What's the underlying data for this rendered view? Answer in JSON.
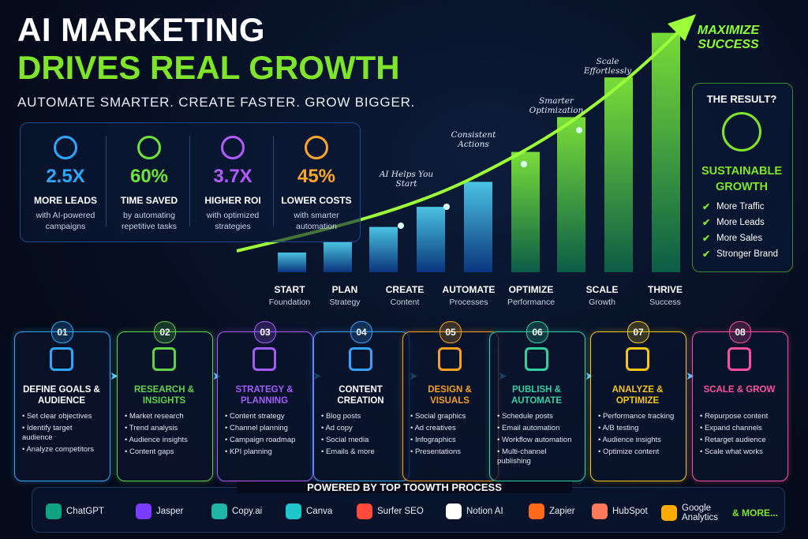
{
  "header": {
    "title_line1": "AI MARKETING",
    "title_line2": "DRIVES REAL GROWTH",
    "tagline": "AUTOMATE SMARTER. CREATE FASTER. GROW BIGGER."
  },
  "stats": [
    {
      "value": "2.5X",
      "label": "MORE LEADS",
      "desc": "with AI-powered campaigns",
      "color": "#2ea8ff"
    },
    {
      "value": "60%",
      "label": "TIME SAVED",
      "desc": "by automating repetitive tasks",
      "color": "#6ee23c"
    },
    {
      "value": "3.7X",
      "label": "HIGHER ROI",
      "desc": "with optimized strategies",
      "color": "#b15cff"
    },
    {
      "value": "45%",
      "label": "LOWER COSTS",
      "desc": "with smarter automation",
      "color": "#ffa52a"
    }
  ],
  "growth": {
    "peak": "MAXIMIZE SUCCESS",
    "annotations": [
      "AI Helps You Start",
      "Consistent Actions",
      "Smarter Optimization",
      "Scale Effortlessly"
    ],
    "stages": [
      {
        "name": "START",
        "sub": "Foundation"
      },
      {
        "name": "PLAN",
        "sub": "Strategy"
      },
      {
        "name": "CREATE",
        "sub": "Content"
      },
      {
        "name": "AUTOMATE",
        "sub": "Processes"
      },
      {
        "name": "OPTIMIZE",
        "sub": "Performance"
      },
      {
        "name": "SCALE",
        "sub": "Growth"
      },
      {
        "name": "THRIVE",
        "sub": "Success"
      }
    ]
  },
  "result": {
    "title": "THE RESULT?",
    "heading": "SUSTAINABLE GROWTH",
    "items": [
      "More Traffic",
      "More Leads",
      "More Sales",
      "Stronger Brand"
    ]
  },
  "steps": [
    {
      "number": "01",
      "title": "DEFINE GOALS & AUDIENCE",
      "color": "#2ea8ff",
      "items": [
        "Set clear objectives",
        "Identify target audience",
        "Analyze competitors"
      ]
    },
    {
      "number": "02",
      "title": "RESEARCH & INSIGHTS",
      "color": "#5fd34a",
      "items": [
        "Market research",
        "Trend analysis",
        "Audience insights",
        "Content gaps"
      ]
    },
    {
      "number": "03",
      "title": "STRATEGY & PLANNING",
      "color": "#a35cff",
      "items": [
        "Content strategy",
        "Channel planning",
        "Campaign roadmap",
        "KPI planning"
      ]
    },
    {
      "number": "04",
      "title": "CONTENT CREATION",
      "color": "#3aa0ff",
      "items": [
        "Blog posts",
        "Ad copy",
        "Social media",
        "Emails & more"
      ]
    },
    {
      "number": "05",
      "title": "DESIGN & VISUALS",
      "color": "#f5a020",
      "items": [
        "Social graphics",
        "Ad creatives",
        "Infographics",
        "Presentations"
      ]
    },
    {
      "number": "06",
      "title": "PUBLISH & AUTOMATE",
      "color": "#33d0a0",
      "items": [
        "Schedule posts",
        "Email automation",
        "Workflow automation",
        "Multi-channel publishing"
      ]
    },
    {
      "number": "07",
      "title": "ANALYZE & OPTIMIZE",
      "color": "#f5c518",
      "items": [
        "Performance tracking",
        "A/B testing",
        "Audience insights",
        "Optimize content"
      ]
    },
    {
      "number": "08",
      "title": "SCALE & GROW",
      "color": "#ff4fa0",
      "items": [
        "Repurpose content",
        "Expand channels",
        "Retarget audience",
        "Scale what works"
      ]
    }
  ],
  "tools": {
    "title": "POWERED BY TOP TOOWTH PROCESS",
    "items": [
      "ChatGPT",
      "Jasper",
      "Copy.ai",
      "Canva",
      "Surfer SEO",
      "Notion AI",
      "Zapier",
      "HubSpot",
      "Google Analytics"
    ],
    "more": "& MORE..."
  }
}
